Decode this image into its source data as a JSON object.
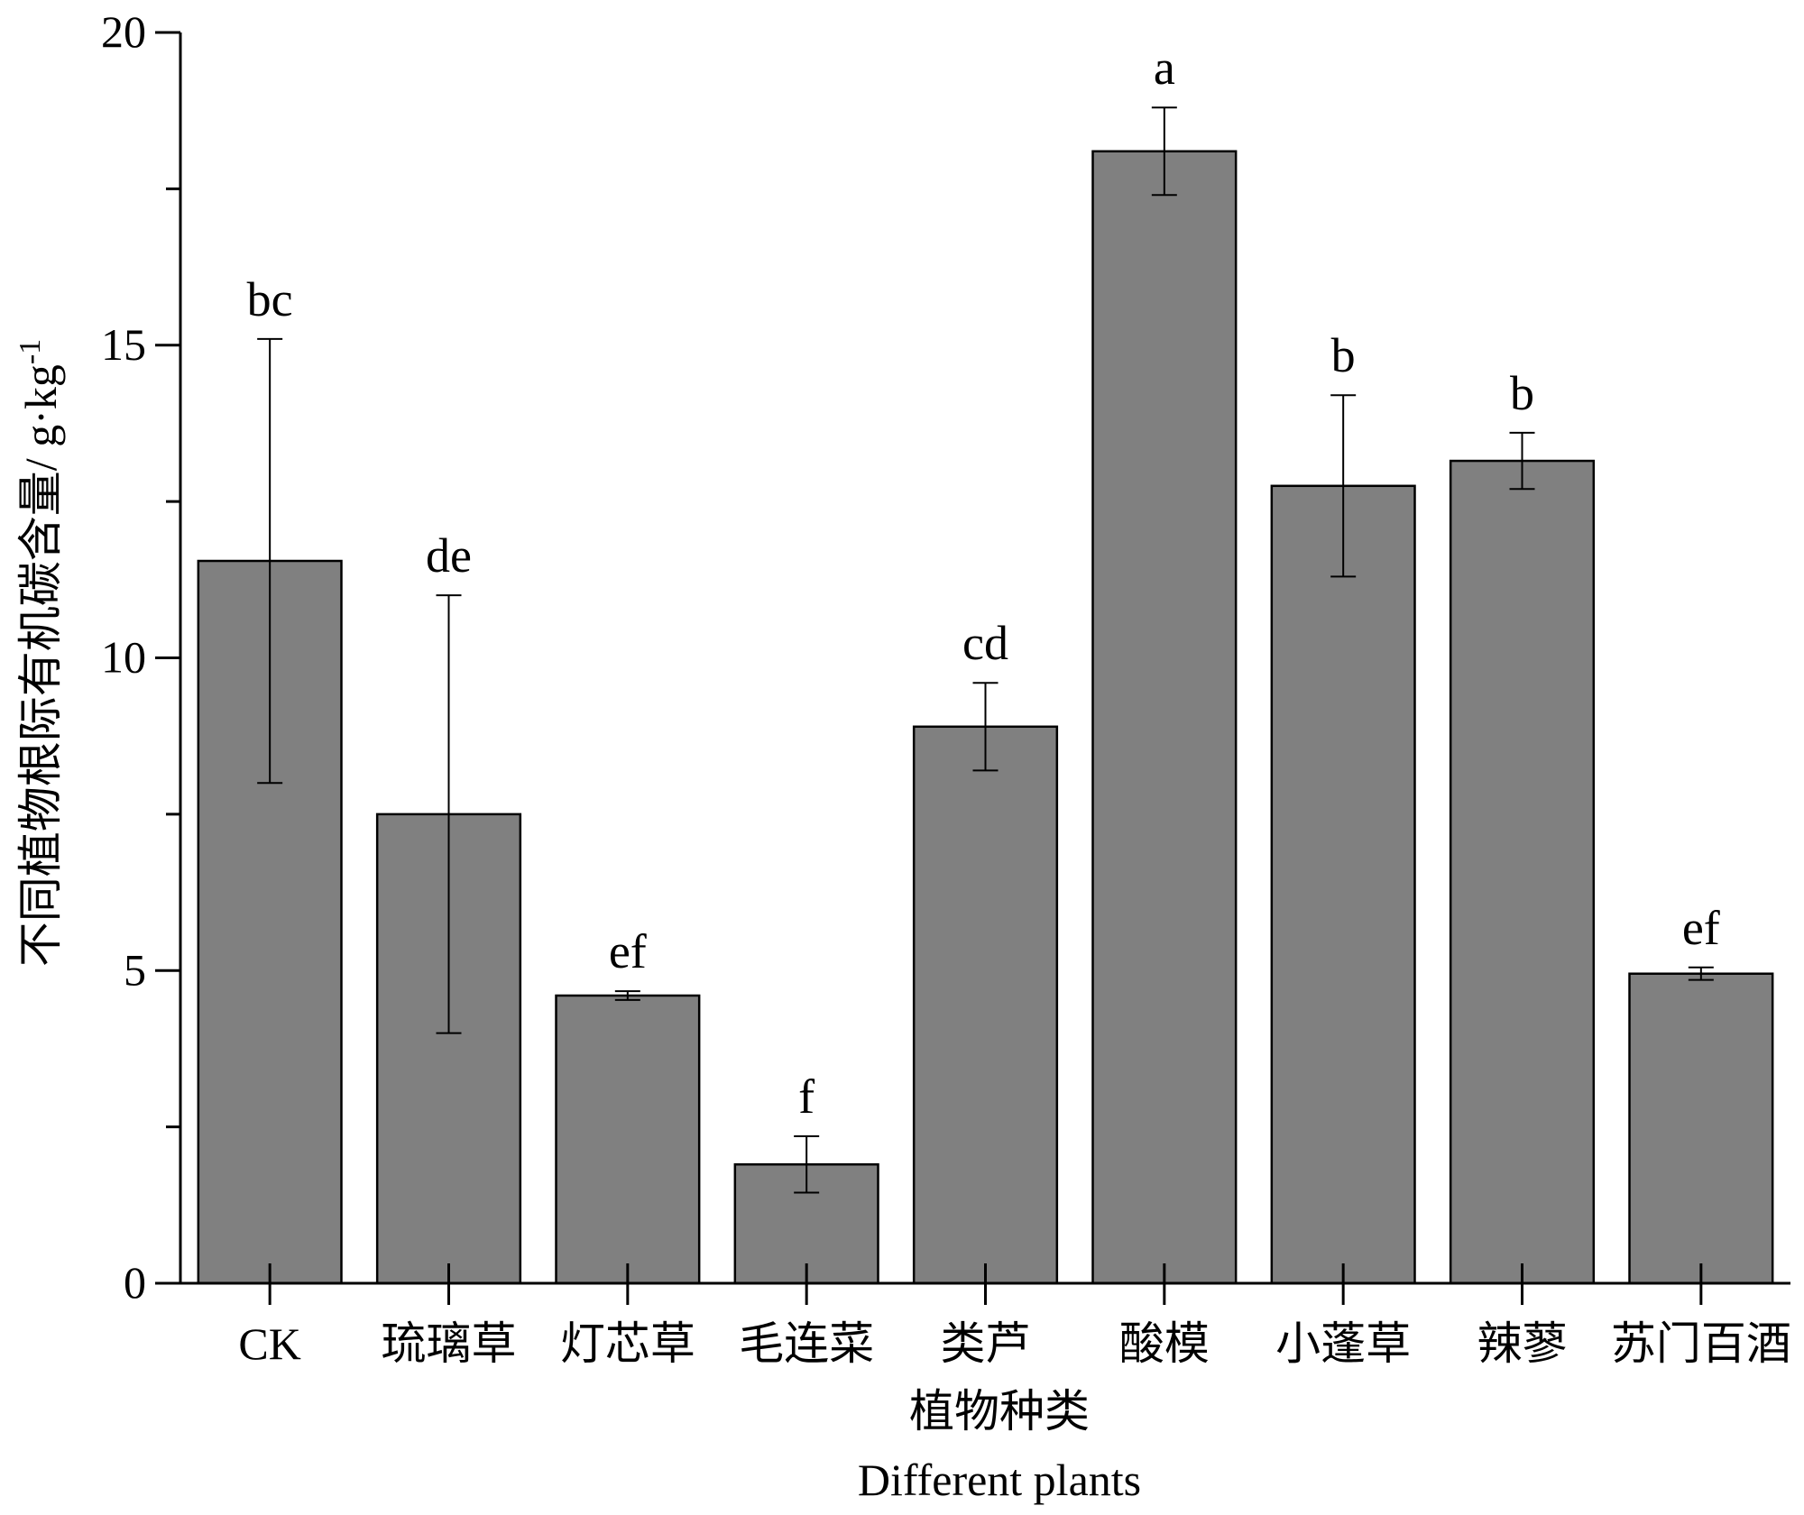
{
  "chart_data": {
    "type": "bar",
    "title": "",
    "xlabel": "植物种类",
    "xlabel_en": "Different plants",
    "ylabel": "不同植物根际有机碳含量/ g·kg",
    "ylabel_sup": "-1",
    "ylim": [
      0,
      20
    ],
    "yticks": [
      "0",
      "5",
      "10",
      "15",
      "20"
    ],
    "grid": false,
    "legend": "none",
    "bar_color": "#808080",
    "categories": [
      "CK",
      "琉璃草",
      "灯芯草",
      "毛连菜",
      "类芦",
      "酸模",
      "小蓬草",
      "辣蓼",
      "苏门百酒"
    ],
    "series": [
      {
        "values": [
          11.55,
          7.5,
          4.6,
          1.9,
          8.9,
          18.1,
          12.75,
          13.15,
          4.95
        ],
        "error": [
          3.55,
          3.5,
          0.07,
          0.45,
          0.7,
          0.7,
          1.45,
          0.45,
          0.1
        ],
        "significance": [
          "bc",
          "de",
          "ef",
          "f",
          "cd",
          "a",
          "b",
          "b",
          "ef"
        ]
      }
    ]
  }
}
